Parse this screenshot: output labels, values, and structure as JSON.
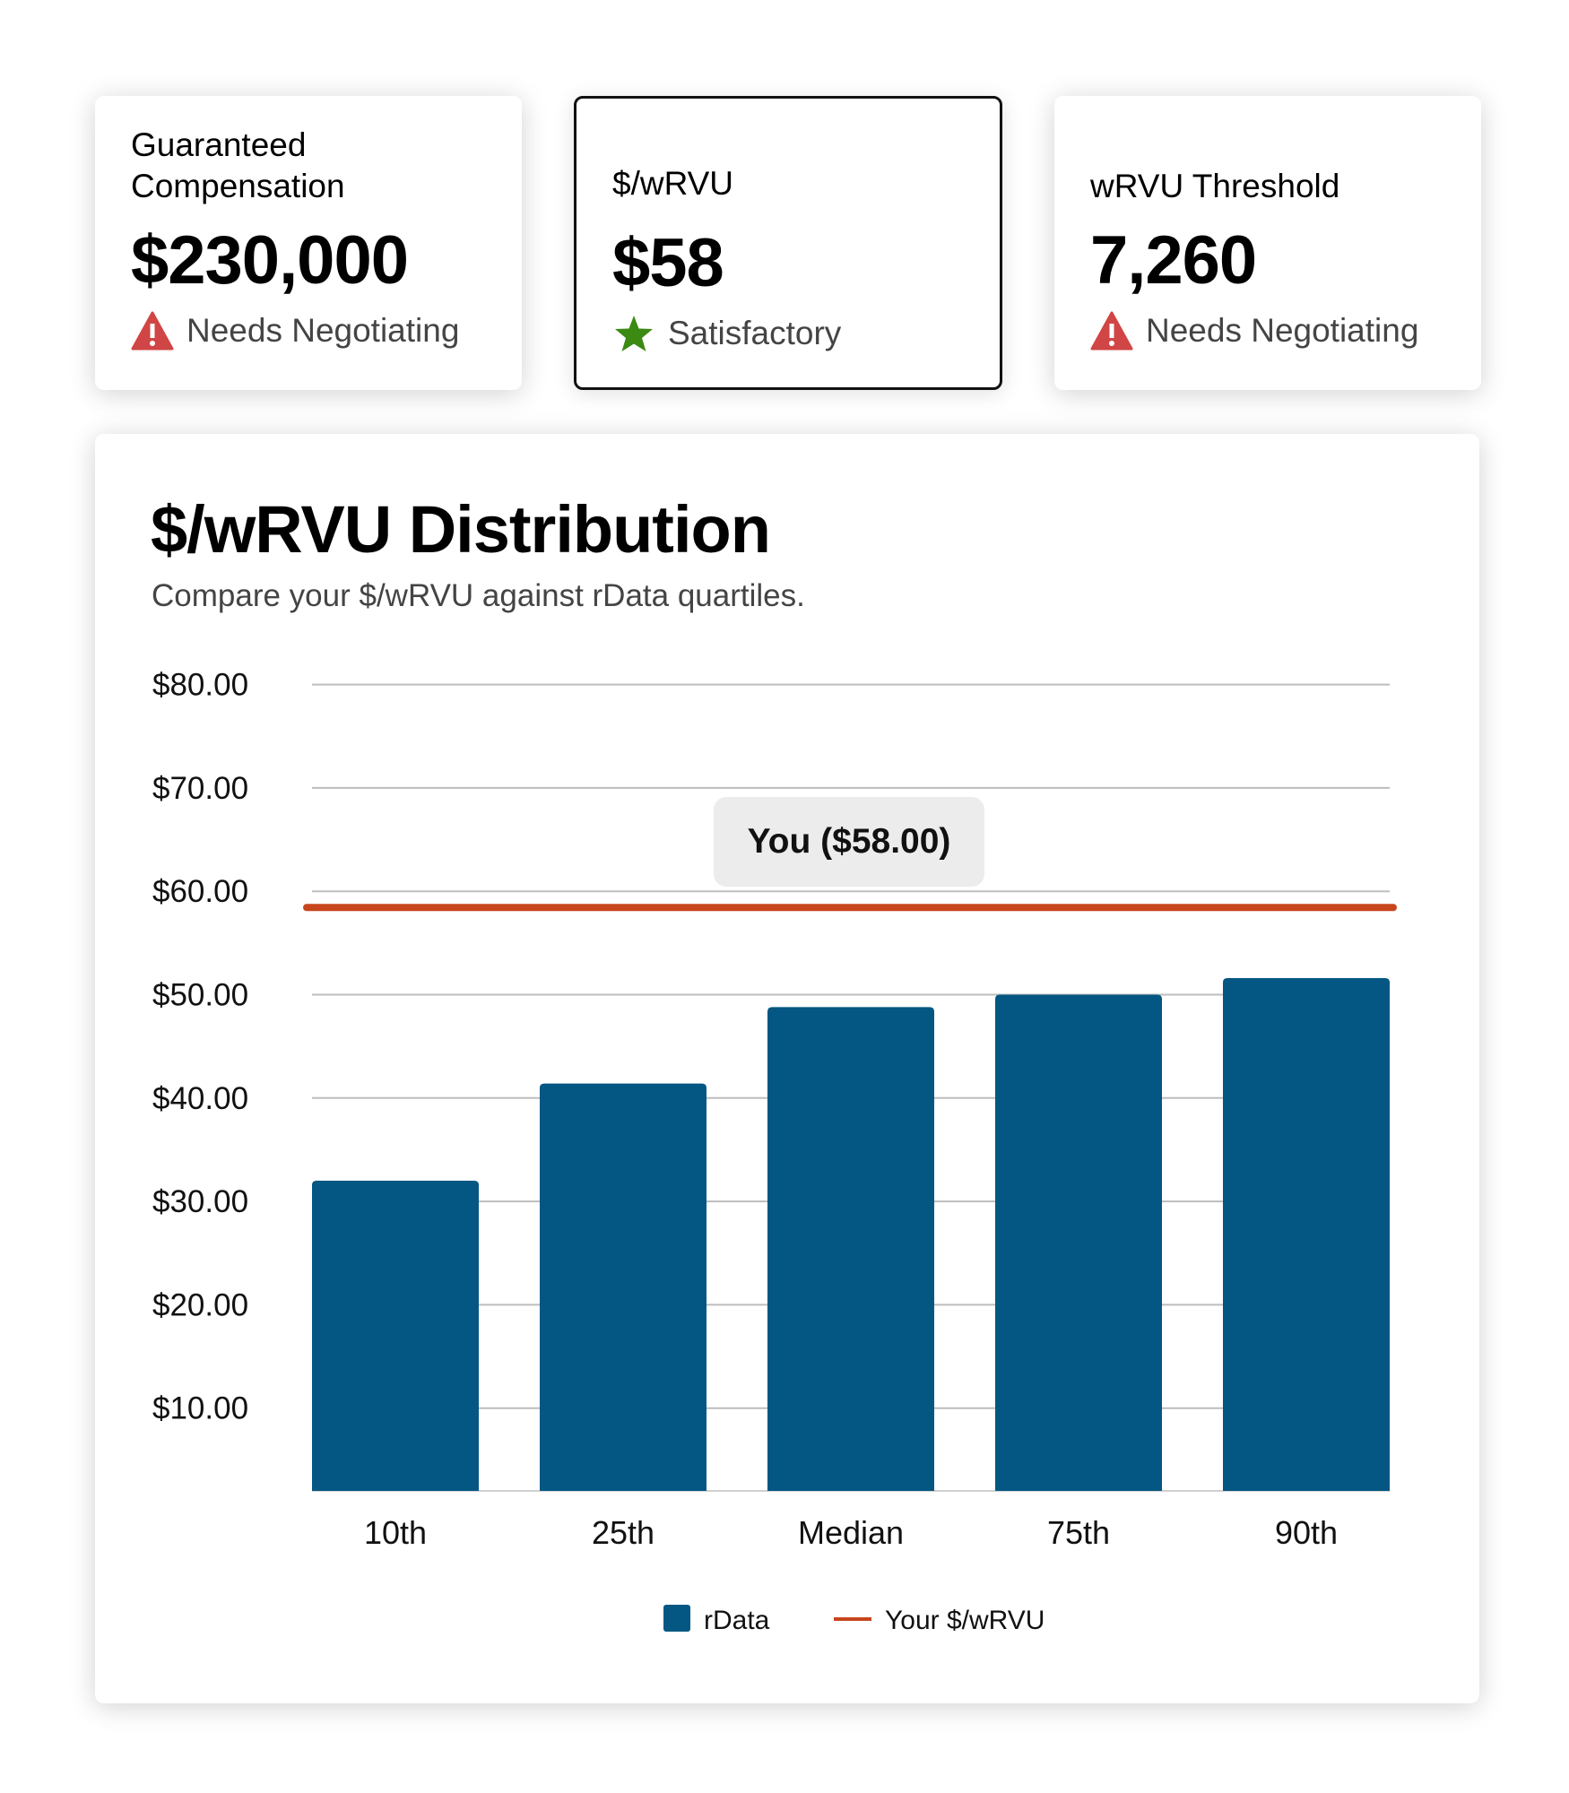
{
  "kpis": [
    {
      "label": "Guaranteed Compensation",
      "value": "$230,000",
      "status": "Needs Negotiating",
      "status_icon": "warning-triangle-icon",
      "icon_color": "#d04545",
      "selected": false
    },
    {
      "label": "$/wRVU",
      "value": "$58",
      "status": "Satisfactory",
      "status_icon": "star-icon",
      "icon_color": "#3b8a12",
      "selected": true
    },
    {
      "label": "wRVU Threshold",
      "value": "7,260",
      "status": "Needs Negotiating",
      "status_icon": "warning-triangle-icon",
      "icon_color": "#d04545",
      "selected": false
    }
  ],
  "chart_card": {
    "title": "$/wRVU Distribution",
    "subtitle": "Compare your $/wRVU against rData quartiles."
  },
  "chart_data": {
    "type": "bar",
    "categories": [
      "10th",
      "25th",
      "Median",
      "75th",
      "90th"
    ],
    "series": [
      {
        "name": "rData",
        "values": [
          32,
          41.4,
          48.8,
          50,
          51.6
        ],
        "color": "#035782"
      }
    ],
    "reference_line": {
      "name": "Your $/wRVU",
      "value": 58,
      "label": "You ($58.00)",
      "color": "#c8461e"
    },
    "y_ticks": [
      "$10.00",
      "$20.00",
      "$30.00",
      "$40.00",
      "$50.00",
      "$60.00",
      "$70.00",
      "$80.00"
    ],
    "y_tick_values": [
      10,
      20,
      30,
      40,
      50,
      60,
      70,
      80
    ],
    "ylim": [
      2,
      80
    ],
    "grid": true,
    "legend": {
      "placement": "bottom",
      "entries": [
        "rData",
        "Your $/wRVU"
      ]
    }
  }
}
